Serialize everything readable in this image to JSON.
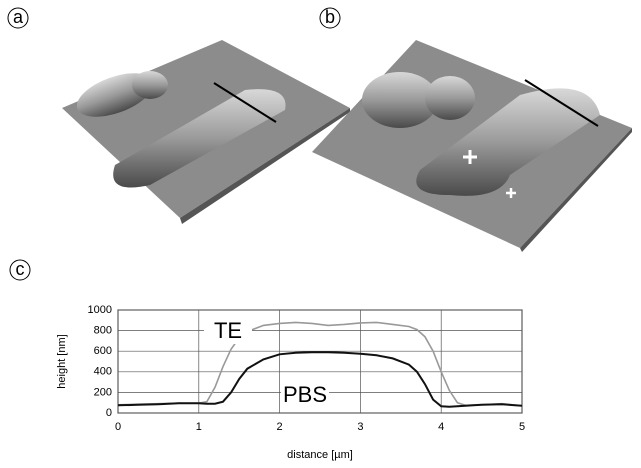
{
  "panel_labels": [
    "a",
    "b",
    "c"
  ],
  "chart_data": {
    "type": "line",
    "xlabel": "distance [µm]",
    "ylabel": "height [nm]",
    "x": [
      0,
      0.25,
      0.5,
      0.75,
      1,
      1.1,
      1.2,
      1.3,
      1.4,
      1.5,
      1.6,
      1.8,
      2,
      2.2,
      2.4,
      2.6,
      2.8,
      3,
      3.2,
      3.4,
      3.6,
      3.7,
      3.8,
      3.9,
      4,
      4.1,
      4.2,
      4.3,
      4.5,
      4.75,
      5
    ],
    "series": [
      {
        "name": "TE",
        "color": "#999999",
        "values": [
          80,
          85,
          90,
          95,
          95,
          110,
          250,
          450,
          620,
          730,
          790,
          850,
          870,
          880,
          870,
          850,
          860,
          875,
          880,
          860,
          840,
          810,
          740,
          600,
          400,
          220,
          100,
          75,
          80,
          90,
          70
        ]
      },
      {
        "name": "PBS",
        "color": "#111111",
        "values": [
          75,
          80,
          85,
          95,
          95,
          90,
          90,
          110,
          200,
          330,
          430,
          520,
          570,
          585,
          590,
          590,
          585,
          575,
          560,
          530,
          470,
          400,
          280,
          130,
          65,
          60,
          65,
          70,
          80,
          85,
          70
        ]
      }
    ],
    "xlim": [
      0,
      5
    ],
    "xticks": [
      0,
      1,
      2,
      3,
      4,
      5
    ],
    "ylim": [
      0,
      1000
    ],
    "yticks": [
      0,
      200,
      400,
      600,
      800,
      1000
    ],
    "grid": true
  }
}
